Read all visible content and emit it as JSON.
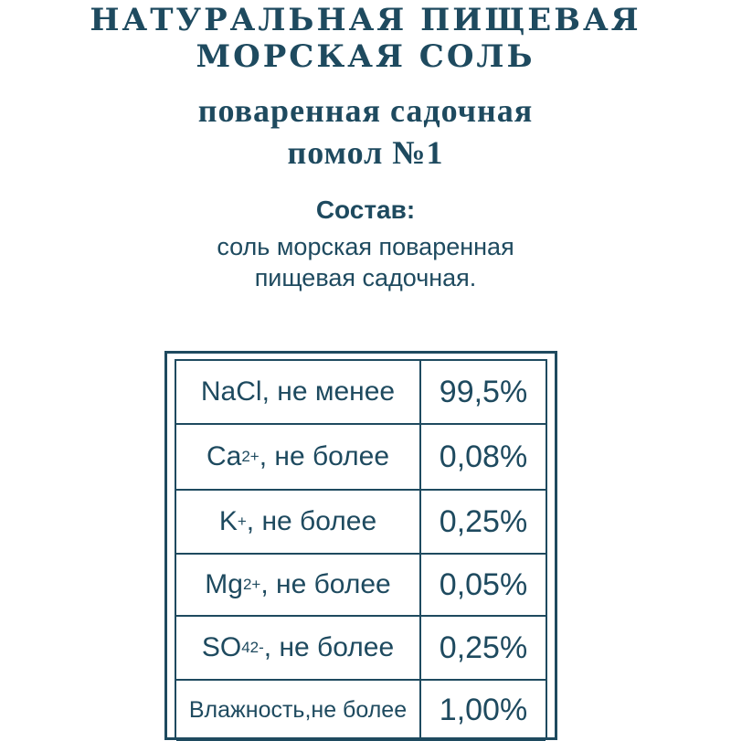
{
  "header": {
    "title": [
      "НАТУРАЛЬНАЯ ПИЩЕВАЯ",
      "МОРСКАЯ СОЛЬ"
    ],
    "subtitle": [
      "поваренная садочная",
      "помол №1"
    ]
  },
  "composition": {
    "heading": "Состав:",
    "text": [
      "соль морская поваренная",
      "пищевая садочная."
    ]
  },
  "table": {
    "rows": [
      [
        [
          {
            "text": "NaCl"
          },
          {
            "text": ", не менее"
          }
        ],
        "99,5%"
      ],
      [
        [
          {
            "text": "Ca"
          },
          {
            "text": "2+",
            "pos": "sup"
          },
          {
            "text": ", не более"
          }
        ],
        "0,08%"
      ],
      [
        [
          {
            "text": "K"
          },
          {
            "text": "+",
            "pos": "sup"
          },
          {
            "text": ", не более"
          }
        ],
        "0,25%"
      ],
      [
        [
          {
            "text": "Mg"
          },
          {
            "text": "2+",
            "pos": "sup"
          },
          {
            "text": ", не более"
          }
        ],
        "0,05%"
      ],
      [
        [
          {
            "text": "SO"
          },
          {
            "text": "4",
            "pos": "sub"
          },
          {
            "text": "2-",
            "pos": "sup"
          },
          {
            "text": ", не более"
          }
        ],
        "0,25%"
      ],
      [
        [
          {
            "text": "Влажность,не более"
          }
        ],
        "1,00%"
      ]
    ]
  }
}
